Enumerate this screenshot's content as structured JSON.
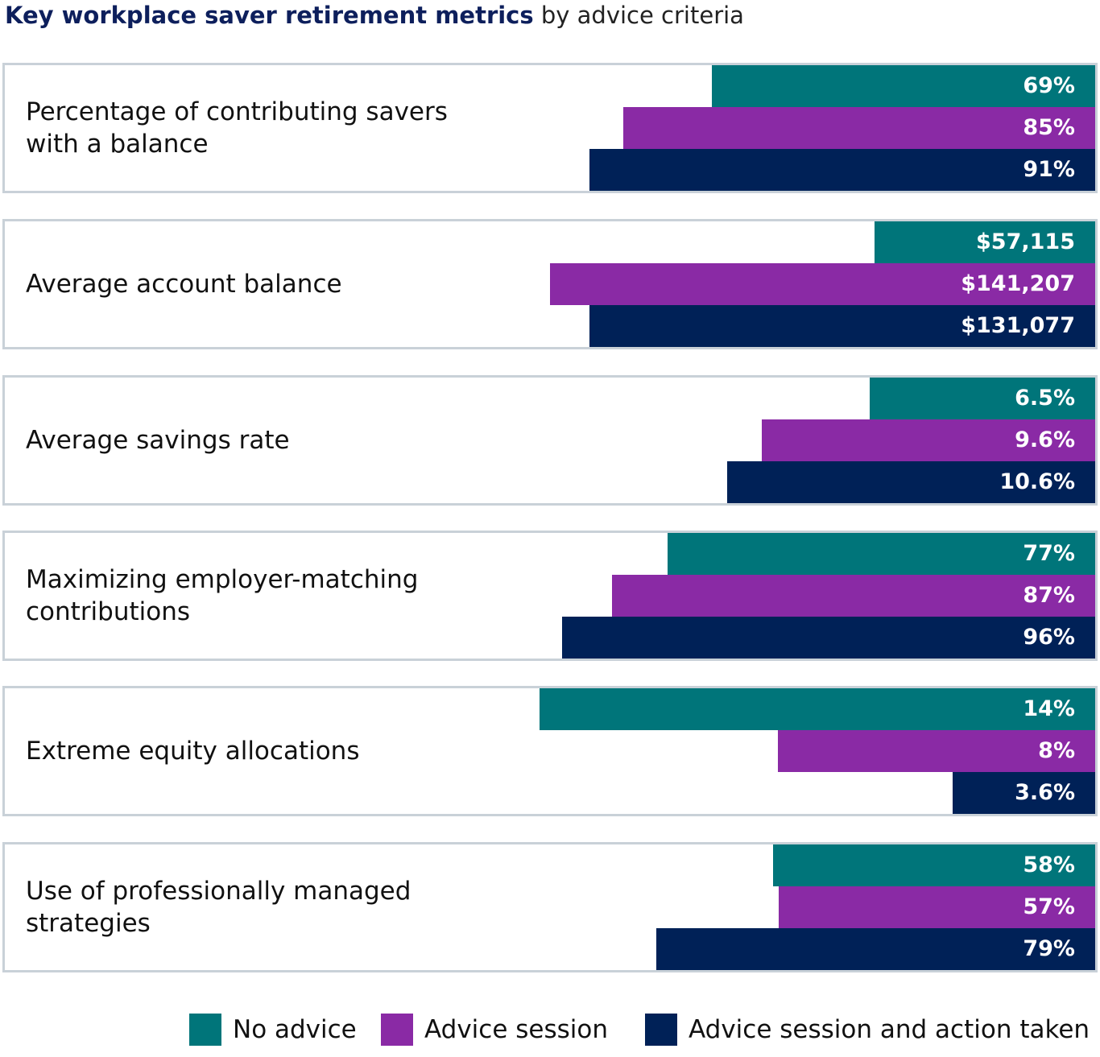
{
  "chart_data": {
    "type": "bar",
    "orientation": "horizontal",
    "title": "Key workplace saver retirement metrics",
    "subtitle": "by advice criteria",
    "categories": [
      "Percentage of contributing savers with a balance",
      "Average account balance",
      "Average savings rate",
      "Maximizing employer-matching contributions",
      "Extreme equity allocations",
      "Use of professionally managed strategies"
    ],
    "xlims": [
      [
        0,
        100
      ],
      [
        0,
        144000
      ],
      [
        0,
        16
      ],
      [
        0,
        100
      ],
      [
        0,
        14
      ],
      [
        0,
        100
      ]
    ],
    "series": [
      {
        "name": "No advice",
        "color": "#00757a",
        "values": [
          69,
          57115,
          6.5,
          77,
          14,
          58
        ],
        "value_labels": [
          "69%",
          "$57,115",
          "6.5%",
          "77%",
          "14%",
          "58%"
        ]
      },
      {
        "name": "Advice session",
        "color": "#8a2aa5",
        "values": [
          85,
          141207,
          9.6,
          87,
          8,
          57
        ],
        "value_labels": [
          "85%",
          "$141,207",
          "9.6%",
          "87%",
          "8%",
          "57%"
        ]
      },
      {
        "name": "Advice session and action taken",
        "color": "#002157",
        "values": [
          91,
          131077,
          10.6,
          96,
          3.6,
          79
        ],
        "value_labels": [
          "91%",
          "$131,077",
          "10.6%",
          "96%",
          "3.6%",
          "79%"
        ]
      }
    ]
  }
}
